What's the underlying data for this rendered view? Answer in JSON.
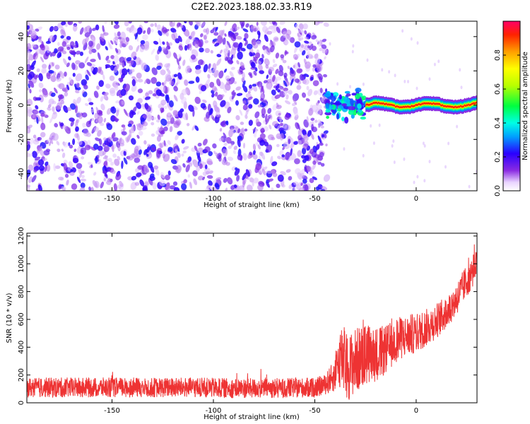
{
  "title": "C2E2.2023.188.02.33.R19",
  "chart_data": [
    {
      "type": "heatmap",
      "xlabel": "Height of straight line (km)",
      "ylabel": "Frequency (Hz)",
      "xlim": [
        -192,
        30
      ],
      "ylim": [
        -50,
        49
      ],
      "xticks": [
        -150,
        -100,
        -50,
        0
      ],
      "xtick_labels": [
        "-150",
        "-100",
        "-50",
        "0"
      ],
      "yticks": [
        40,
        20,
        0,
        -20,
        -40
      ],
      "ytick_labels": [
        "40",
        "20",
        "0",
        "-20",
        "-40"
      ],
      "colorbar": {
        "label": "Normalized spectral amplitude",
        "range": [
          0,
          1
        ],
        "ticks": [
          0.0,
          0.2,
          0.4,
          0.6,
          0.8
        ],
        "tick_labels": [
          "0.0",
          "0.2",
          "0.4",
          "0.6",
          "0.8"
        ]
      },
      "regions": [
        {
          "x_range": [
            -192,
            -44
          ],
          "freq_range": [
            -50,
            49
          ],
          "amplitude": "low, scattered (≈0.05–0.2)"
        },
        {
          "x_range": [
            -44,
            -25
          ],
          "freq_center": 0,
          "freq_halfwidth": 8,
          "amplitude": "≈0.3–0.5"
        },
        {
          "x_range": [
            -25,
            30
          ],
          "freq_center": 0,
          "freq_halfwidth": 3,
          "amplitude": "≈0.6–1.0"
        }
      ],
      "grid": false
    },
    {
      "type": "line",
      "xlabel": "Height of straight line (km)",
      "ylabel": "SNR (10 * v/v)",
      "xlim": [
        -192,
        30
      ],
      "ylim": [
        0,
        1220
      ],
      "xticks": [
        -150,
        -100,
        -50,
        0
      ],
      "xtick_labels": [
        "-150",
        "-100",
        "-50",
        "0"
      ],
      "yticks": [
        0,
        200,
        400,
        600,
        800,
        1000,
        1200
      ],
      "ytick_labels": [
        "0",
        "200",
        "400",
        "600",
        "800",
        "1000",
        "1200"
      ],
      "color": "#ee3333",
      "x": [
        -192,
        -170,
        -150,
        -130,
        -110,
        -90,
        -70,
        -50,
        -45,
        -40,
        -37,
        -34,
        -30,
        -25,
        -20,
        -15,
        -10,
        -5,
        0,
        5,
        10,
        15,
        20,
        25,
        28,
        30
      ],
      "y": [
        110,
        110,
        110,
        110,
        110,
        105,
        105,
        110,
        130,
        200,
        350,
        250,
        300,
        350,
        350,
        380,
        450,
        480,
        500,
        540,
        590,
        650,
        750,
        880,
        950,
        1000
      ],
      "noise_amplitude": [
        90,
        90,
        90,
        90,
        90,
        90,
        90,
        90,
        90,
        150,
        300,
        300,
        300,
        280,
        250,
        220,
        200,
        190,
        180,
        170,
        160,
        150,
        150,
        150,
        150,
        150
      ],
      "grid": false
    }
  ]
}
